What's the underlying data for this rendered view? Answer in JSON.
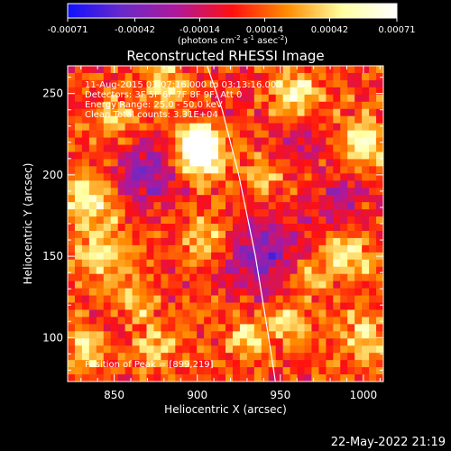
{
  "chart_data": {
    "type": "heatmap",
    "title": "Reconstructed RHESSI Image",
    "xlabel": "Heliocentric X (arcsec)",
    "ylabel": "Heliocentric Y (arcsec)",
    "xlim": [
      822,
      1012
    ],
    "ylim": [
      73,
      267
    ],
    "xticks": [
      850,
      900,
      950,
      1000
    ],
    "yticks": [
      100,
      150,
      200,
      250
    ],
    "colorbar": {
      "range": [
        -0.00071,
        0.00071
      ],
      "ticks": [
        "-0.00071",
        "-0.00042",
        "-0.00014",
        "0.00014",
        "0.00042",
        "0.00071"
      ],
      "tick_values": [
        -0.00071,
        -0.00042,
        -0.00014,
        0.00014,
        0.00042,
        0.00071
      ],
      "units_main": "(photons cm",
      "units_exp1": "-2",
      "units_mid": " s",
      "units_exp2": "-1",
      "units_mid2": " asec",
      "units_exp3": "-2",
      "units_end": ")",
      "stops": [
        "#1010ff",
        "#6a2ac8",
        "#b0189a",
        "#ff1010",
        "#ff8c00",
        "#ffffa0",
        "#ffffff"
      ]
    },
    "annotations": [
      "11-Aug-2015 03:07:16.000 to 03:13:16.000",
      "Detectors: 3F 5F 6F 7F 8F 9F, Att 0",
      "Energy Range: 25.0 - 50.0 keV",
      "Clean     Total counts: 3.31E+04"
    ],
    "peak_label": "Position of Peak = [899,219]",
    "peak": [
      899,
      219
    ],
    "limb_points": [
      [
        906,
        267
      ],
      [
        915,
        240
      ],
      [
        925,
        200
      ],
      [
        935,
        150
      ],
      [
        943,
        100
      ],
      [
        947,
        73
      ]
    ],
    "sources": [
      {
        "x": 900,
        "y": 220,
        "v": 0.00071,
        "s": 8
      },
      {
        "x": 903,
        "y": 210,
        "v": 0.00055,
        "s": 10
      },
      {
        "x": 835,
        "y": 185,
        "v": 0.00045,
        "s": 12
      },
      {
        "x": 845,
        "y": 150,
        "v": 0.0004,
        "s": 12
      },
      {
        "x": 860,
        "y": 120,
        "v": 0.00035,
        "s": 10
      },
      {
        "x": 875,
        "y": 95,
        "v": 0.0003,
        "s": 10
      },
      {
        "x": 905,
        "y": 160,
        "v": 0.0003,
        "s": 12
      },
      {
        "x": 960,
        "y": 250,
        "v": 0.00045,
        "s": 10
      },
      {
        "x": 1000,
        "y": 220,
        "v": 0.0005,
        "s": 10
      },
      {
        "x": 990,
        "y": 150,
        "v": 0.00042,
        "s": 10
      },
      {
        "x": 1000,
        "y": 100,
        "v": 0.0004,
        "s": 10
      },
      {
        "x": 955,
        "y": 110,
        "v": 0.00038,
        "s": 9
      },
      {
        "x": 930,
        "y": 100,
        "v": 0.00045,
        "s": 8
      },
      {
        "x": 965,
        "y": 140,
        "v": 0.0003,
        "s": 9
      },
      {
        "x": 835,
        "y": 95,
        "v": 0.0004,
        "s": 10
      },
      {
        "x": 880,
        "y": 255,
        "v": 0.00035,
        "s": 10
      },
      {
        "x": 940,
        "y": 200,
        "v": 0.00025,
        "s": 9
      },
      {
        "x": 850,
        "y": 235,
        "v": 0.0003,
        "s": 10
      },
      {
        "x": 870,
        "y": 200,
        "v": -0.0004,
        "s": 14
      },
      {
        "x": 940,
        "y": 150,
        "v": -0.00045,
        "s": 16
      },
      {
        "x": 985,
        "y": 185,
        "v": -0.00025,
        "s": 12
      },
      {
        "x": 960,
        "y": 220,
        "v": -0.00025,
        "s": 10
      },
      {
        "x": 850,
        "y": 110,
        "v": -0.00025,
        "s": 10
      }
    ]
  },
  "footer": {
    "datetime": "22-May-2022 21:19"
  }
}
